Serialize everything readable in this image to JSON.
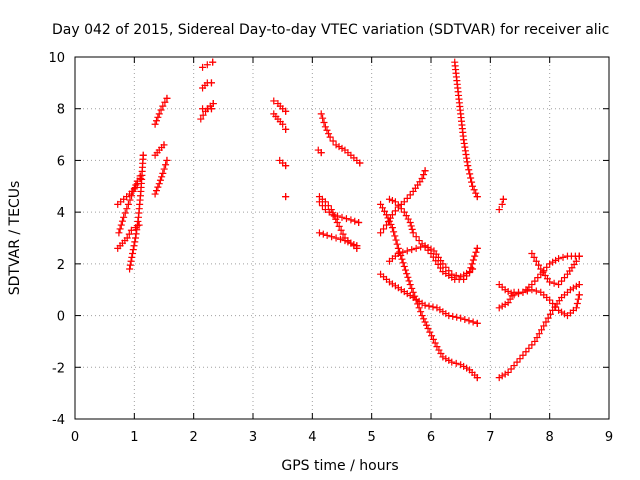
{
  "chart_data": {
    "type": "scatter",
    "title": "Day 042 of 2015, Sidereal Day-to-day VTEC variation (SDTVAR) for receiver alic",
    "xlabel": "GPS time / hours",
    "ylabel": "SDTVAR / TECUs",
    "xlim": [
      0,
      9
    ],
    "ylim": [
      -4,
      10
    ],
    "xticks": [
      "0",
      "1",
      "2",
      "3",
      "4",
      "5",
      "6",
      "7",
      "8",
      "9"
    ],
    "yticks": [
      "-4",
      "-2",
      "0",
      "2",
      "4",
      "6",
      "8",
      "10"
    ],
    "grid": true,
    "marker": "+",
    "color": "#ff0000",
    "tracks": [
      [
        [
          0.72,
          2.6
        ],
        [
          0.8,
          2.8
        ],
        [
          0.88,
          3.0
        ],
        [
          0.95,
          3.3
        ],
        [
          1.02,
          3.4
        ],
        [
          1.08,
          3.5
        ]
      ],
      [
        [
          0.74,
          3.2
        ],
        [
          0.82,
          3.8
        ],
        [
          0.9,
          4.3
        ],
        [
          0.98,
          4.8
        ],
        [
          1.05,
          5.1
        ],
        [
          1.1,
          5.3
        ]
      ],
      [
        [
          0.72,
          4.3
        ],
        [
          0.82,
          4.5
        ],
        [
          0.92,
          4.7
        ],
        [
          1.0,
          4.9
        ],
        [
          1.05,
          5.2
        ],
        [
          1.1,
          5.4
        ]
      ],
      [
        [
          0.92,
          1.8
        ],
        [
          0.97,
          2.4
        ],
        [
          1.02,
          3.0
        ],
        [
          1.07,
          3.8
        ],
        [
          1.11,
          4.8
        ],
        [
          1.15,
          6.2
        ]
      ],
      [
        [
          1.35,
          4.7
        ],
        [
          1.42,
          5.1
        ],
        [
          1.48,
          5.5
        ],
        [
          1.55,
          6.0
        ]
      ],
      [
        [
          1.35,
          6.2
        ],
        [
          1.42,
          6.4
        ],
        [
          1.5,
          6.6
        ]
      ],
      [
        [
          1.35,
          7.4
        ],
        [
          1.42,
          7.8
        ],
        [
          1.48,
          8.1
        ],
        [
          1.55,
          8.4
        ]
      ],
      [
        [
          2.12,
          7.6
        ],
        [
          2.2,
          7.9
        ],
        [
          2.28,
          8.1
        ],
        [
          2.33,
          8.2
        ]
      ],
      [
        [
          2.15,
          8.0
        ],
        [
          2.23,
          8.0
        ],
        [
          2.3,
          8.0
        ]
      ],
      [
        [
          2.15,
          8.8
        ],
        [
          2.23,
          9.0
        ],
        [
          2.3,
          9.0
        ]
      ],
      [
        [
          2.15,
          9.6
        ],
        [
          2.23,
          9.7
        ],
        [
          2.32,
          9.8
        ]
      ],
      [
        [
          3.35,
          8.3
        ],
        [
          3.42,
          8.2
        ],
        [
          3.5,
          8.0
        ],
        [
          3.55,
          7.9
        ]
      ],
      [
        [
          3.35,
          7.8
        ],
        [
          3.42,
          7.6
        ],
        [
          3.5,
          7.4
        ],
        [
          3.55,
          7.2
        ]
      ],
      [
        [
          3.45,
          6.0
        ],
        [
          3.5,
          5.9
        ],
        [
          3.55,
          5.8
        ]
      ],
      [
        [
          3.55,
          4.6
        ]
      ],
      [
        [
          4.1,
          6.4
        ],
        [
          4.15,
          6.3
        ]
      ],
      [
        [
          4.15,
          7.8
        ],
        [
          4.22,
          7.3
        ],
        [
          4.3,
          6.9
        ],
        [
          4.4,
          6.6
        ],
        [
          4.55,
          6.4
        ],
        [
          4.7,
          6.1
        ],
        [
          4.8,
          5.9
        ]
      ],
      [
        [
          4.12,
          4.6
        ],
        [
          4.22,
          4.4
        ],
        [
          4.32,
          4.1
        ],
        [
          4.42,
          3.6
        ],
        [
          4.55,
          3.0
        ],
        [
          4.65,
          2.8
        ],
        [
          4.75,
          2.6
        ]
      ],
      [
        [
          4.12,
          4.4
        ],
        [
          4.22,
          4.1
        ],
        [
          4.35,
          3.9
        ],
        [
          4.5,
          3.8
        ],
        [
          4.65,
          3.7
        ],
        [
          4.78,
          3.6
        ]
      ],
      [
        [
          4.12,
          3.2
        ],
        [
          4.25,
          3.1
        ],
        [
          4.4,
          3.0
        ],
        [
          4.55,
          2.9
        ],
        [
          4.65,
          2.8
        ],
        [
          4.75,
          2.7
        ]
      ],
      [
        [
          5.15,
          1.6
        ],
        [
          5.3,
          1.3
        ],
        [
          5.5,
          1.0
        ],
        [
          5.7,
          0.7
        ],
        [
          5.9,
          0.4
        ],
        [
          6.1,
          0.3
        ],
        [
          6.3,
          0.0
        ],
        [
          6.5,
          -0.1
        ],
        [
          6.78,
          -0.3
        ]
      ],
      [
        [
          5.15,
          4.3
        ],
        [
          5.25,
          3.9
        ],
        [
          5.35,
          3.4
        ],
        [
          5.45,
          2.6
        ],
        [
          5.55,
          1.9
        ],
        [
          5.65,
          1.2
        ],
        [
          5.75,
          0.6
        ],
        [
          5.85,
          0.0
        ],
        [
          5.95,
          -0.5
        ],
        [
          6.1,
          -1.2
        ],
        [
          6.2,
          -1.6
        ],
        [
          6.35,
          -1.8
        ],
        [
          6.5,
          -1.9
        ],
        [
          6.65,
          -2.1
        ],
        [
          6.78,
          -2.4
        ]
      ],
      [
        [
          5.15,
          3.2
        ],
        [
          5.25,
          3.5
        ],
        [
          5.35,
          3.9
        ],
        [
          5.45,
          4.2
        ],
        [
          5.55,
          4.4
        ],
        [
          5.7,
          4.8
        ],
        [
          5.85,
          5.3
        ],
        [
          5.9,
          5.6
        ]
      ],
      [
        [
          5.3,
          2.1
        ],
        [
          5.45,
          2.4
        ],
        [
          5.6,
          2.5
        ],
        [
          5.75,
          2.6
        ],
        [
          5.9,
          2.7
        ],
        [
          6.05,
          2.5
        ],
        [
          6.2,
          2.0
        ],
        [
          6.35,
          1.6
        ],
        [
          6.5,
          1.5
        ],
        [
          6.65,
          1.7
        ],
        [
          6.78,
          2.6
        ]
      ],
      [
        [
          5.3,
          4.5
        ],
        [
          5.4,
          4.4
        ],
        [
          5.55,
          4.0
        ],
        [
          5.65,
          3.6
        ],
        [
          5.7,
          3.2
        ],
        [
          5.8,
          2.9
        ],
        [
          6.0,
          2.4
        ],
        [
          6.2,
          1.7
        ],
        [
          6.4,
          1.4
        ],
        [
          6.55,
          1.4
        ],
        [
          6.7,
          1.8
        ]
      ],
      [
        [
          6.4,
          9.8
        ],
        [
          6.45,
          8.8
        ],
        [
          6.5,
          7.8
        ],
        [
          6.55,
          6.8
        ],
        [
          6.62,
          5.8
        ],
        [
          6.7,
          5.0
        ],
        [
          6.78,
          4.6
        ]
      ],
      [
        [
          7.15,
          4.1
        ],
        [
          7.2,
          4.3
        ],
        [
          7.22,
          4.5
        ]
      ],
      [
        [
          7.15,
          -2.4
        ],
        [
          7.3,
          -2.2
        ],
        [
          7.45,
          -1.8
        ],
        [
          7.6,
          -1.4
        ],
        [
          7.75,
          -1.0
        ],
        [
          7.9,
          -0.4
        ],
        [
          8.05,
          0.2
        ],
        [
          8.2,
          0.7
        ],
        [
          8.35,
          1.0
        ],
        [
          8.5,
          1.2
        ]
      ],
      [
        [
          7.15,
          0.3
        ],
        [
          7.3,
          0.5
        ],
        [
          7.4,
          0.9
        ],
        [
          7.55,
          0.9
        ],
        [
          7.7,
          1.0
        ],
        [
          7.85,
          0.9
        ],
        [
          8.0,
          0.6
        ],
        [
          8.15,
          0.2
        ],
        [
          8.3,
          0.0
        ],
        [
          8.45,
          0.3
        ],
        [
          8.5,
          0.8
        ]
      ],
      [
        [
          7.15,
          1.2
        ],
        [
          7.25,
          1.0
        ],
        [
          7.4,
          0.8
        ],
        [
          7.55,
          0.9
        ],
        [
          7.7,
          1.2
        ],
        [
          7.85,
          1.6
        ],
        [
          8.0,
          2.0
        ],
        [
          8.15,
          2.2
        ],
        [
          8.3,
          2.3
        ],
        [
          8.5,
          2.3
        ]
      ],
      [
        [
          7.7,
          2.4
        ],
        [
          7.85,
          1.8
        ],
        [
          8.0,
          1.3
        ],
        [
          8.15,
          1.2
        ],
        [
          8.3,
          1.6
        ],
        [
          8.45,
          2.1
        ],
        [
          8.5,
          2.3
        ]
      ]
    ]
  }
}
